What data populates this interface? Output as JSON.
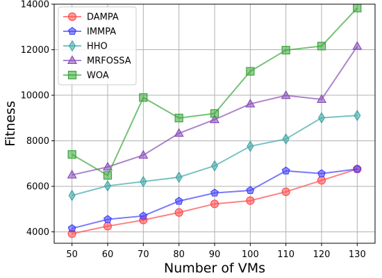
{
  "chart_data": {
    "type": "line",
    "xlabel": "Number of VMs",
    "ylabel": "Fitness",
    "x": [
      50,
      60,
      70,
      80,
      90,
      100,
      110,
      120,
      130
    ],
    "xlim": [
      45,
      135
    ],
    "ylim": [
      3500,
      14000
    ],
    "yticks": [
      4000,
      6000,
      8000,
      10000,
      12000,
      14000
    ],
    "grid": true,
    "legend_position": "top-left",
    "series": [
      {
        "name": "DAMPA",
        "color": "#ff4d4d",
        "marker": "circle",
        "values": [
          3920,
          4250,
          4520,
          4850,
          5230,
          5370,
          5760,
          6260,
          6760
        ]
      },
      {
        "name": "IMMPA",
        "color": "#4040ff",
        "marker": "pentagon",
        "values": [
          4150,
          4550,
          4700,
          5350,
          5710,
          5820,
          6680,
          6560,
          6760
        ]
      },
      {
        "name": "HHO",
        "color": "#40a8a8",
        "marker": "diamond",
        "values": [
          5600,
          6020,
          6210,
          6400,
          6900,
          7760,
          8080,
          9010,
          9110
        ]
      },
      {
        "name": "MRFOSSA",
        "color": "#8a4fb8",
        "marker": "triangle",
        "values": [
          6500,
          6850,
          7370,
          8330,
          8930,
          9620,
          9990,
          9820,
          12150
        ]
      },
      {
        "name": "WOA",
        "color": "#3aa63a",
        "marker": "square",
        "values": [
          7400,
          6480,
          9900,
          9000,
          9200,
          11050,
          11980,
          12160,
          13830
        ]
      }
    ]
  }
}
